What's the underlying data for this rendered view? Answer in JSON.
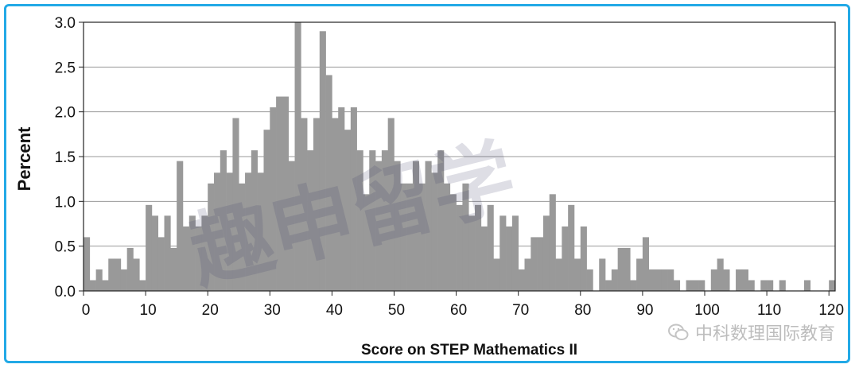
{
  "chart_data": {
    "type": "bar",
    "ylabel": "Percent",
    "xlabel": "Score on STEP Mathematics II",
    "xlim": [
      0,
      121
    ],
    "ylim": [
      0,
      3.0
    ],
    "xticks": [
      0,
      10,
      20,
      30,
      40,
      50,
      60,
      70,
      80,
      90,
      100,
      110,
      120
    ],
    "yticks": [
      0.0,
      0.5,
      1.0,
      1.5,
      2.0,
      2.5,
      3.0
    ],
    "xtick_labels": [
      "0",
      "10",
      "20",
      "30",
      "40",
      "50",
      "60",
      "70",
      "80",
      "90",
      "100",
      "110",
      "120"
    ],
    "ytick_labels": [
      "0.0",
      "0.5",
      "1.0",
      "1.5",
      "2.0",
      "2.5",
      "3.0"
    ],
    "grid": "horizontal",
    "bar_color": "#999999",
    "x": [
      0,
      1,
      2,
      3,
      4,
      5,
      6,
      7,
      8,
      9,
      10,
      11,
      12,
      13,
      14,
      15,
      16,
      17,
      18,
      19,
      20,
      21,
      22,
      23,
      24,
      25,
      26,
      27,
      28,
      29,
      30,
      31,
      32,
      33,
      34,
      35,
      36,
      37,
      38,
      39,
      40,
      41,
      42,
      43,
      44,
      45,
      46,
      47,
      48,
      49,
      50,
      51,
      52,
      53,
      54,
      55,
      56,
      57,
      58,
      59,
      60,
      61,
      62,
      63,
      64,
      65,
      66,
      67,
      68,
      69,
      70,
      71,
      72,
      73,
      74,
      75,
      76,
      77,
      78,
      79,
      80,
      81,
      82,
      83,
      84,
      85,
      86,
      87,
      88,
      89,
      90,
      91,
      92,
      93,
      94,
      95,
      96,
      97,
      98,
      99,
      100,
      101,
      102,
      103,
      104,
      105,
      106,
      107,
      108,
      109,
      110,
      111,
      112,
      113,
      114,
      115,
      116,
      117,
      118,
      119,
      120
    ],
    "values": [
      0.6,
      0.12,
      0.24,
      0.12,
      0.36,
      0.36,
      0.24,
      0.48,
      0.36,
      0.12,
      0.96,
      0.84,
      0.6,
      0.84,
      0.48,
      1.45,
      0.72,
      0.84,
      0.72,
      0.84,
      1.2,
      1.32,
      1.57,
      1.32,
      1.93,
      1.2,
      1.32,
      1.57,
      1.32,
      1.8,
      2.05,
      2.17,
      2.17,
      1.45,
      3.0,
      1.93,
      1.57,
      1.93,
      2.9,
      2.41,
      1.93,
      2.05,
      1.8,
      2.05,
      1.57,
      1.08,
      1.57,
      1.45,
      1.57,
      1.93,
      1.45,
      1.2,
      1.2,
      1.45,
      1.2,
      1.45,
      1.32,
      1.57,
      1.2,
      1.08,
      0.96,
      1.2,
      0.84,
      0.96,
      0.72,
      0.96,
      0.36,
      0.84,
      0.72,
      0.84,
      0.24,
      0.36,
      0.6,
      0.6,
      0.84,
      1.08,
      0.36,
      0.72,
      0.96,
      0.36,
      0.72,
      0.24,
      0.0,
      0.36,
      0.12,
      0.24,
      0.48,
      0.48,
      0.12,
      0.36,
      0.6,
      0.24,
      0.24,
      0.24,
      0.24,
      0.12,
      0.0,
      0.12,
      0.12,
      0.12,
      0.0,
      0.24,
      0.36,
      0.24,
      0.0,
      0.24,
      0.24,
      0.12,
      0.0,
      0.12,
      0.12,
      0.0,
      0.12,
      0.0,
      0.0,
      0.0,
      0.12,
      0.0,
      0.0,
      0.0,
      0.12
    ]
  },
  "watermark": "趣申留学",
  "wechat": {
    "icon": "wechat-icon",
    "label": "中科数理国际教育"
  },
  "frame_color": "#22a9e6"
}
